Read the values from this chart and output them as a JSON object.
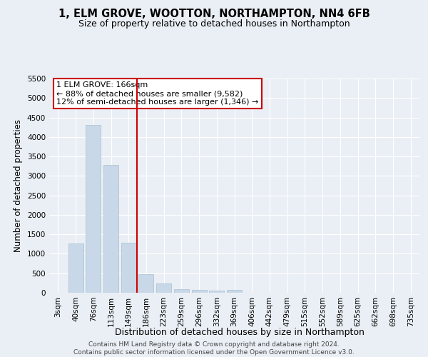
{
  "title": "1, ELM GROVE, WOOTTON, NORTHAMPTON, NN4 6FB",
  "subtitle": "Size of property relative to detached houses in Northampton",
  "xlabel": "Distribution of detached houses by size in Northampton",
  "ylabel": "Number of detached properties",
  "categories": [
    "3sqm",
    "40sqm",
    "76sqm",
    "113sqm",
    "149sqm",
    "186sqm",
    "223sqm",
    "259sqm",
    "296sqm",
    "332sqm",
    "369sqm",
    "406sqm",
    "442sqm",
    "479sqm",
    "515sqm",
    "552sqm",
    "589sqm",
    "625sqm",
    "662sqm",
    "698sqm",
    "735sqm"
  ],
  "values": [
    0,
    1270,
    4300,
    3280,
    1290,
    480,
    230,
    100,
    65,
    50,
    65,
    0,
    0,
    0,
    0,
    0,
    0,
    0,
    0,
    0,
    0
  ],
  "bar_color": "#c8d8e8",
  "bar_edgecolor": "#a8c0d0",
  "vline_color": "#cc0000",
  "annotation_text": "1 ELM GROVE: 166sqm\n← 88% of detached houses are smaller (9,582)\n12% of semi-detached houses are larger (1,346) →",
  "annotation_box_color": "#ffffff",
  "annotation_box_edgecolor": "#cc0000",
  "ylim": [
    0,
    5500
  ],
  "yticks": [
    0,
    500,
    1000,
    1500,
    2000,
    2500,
    3000,
    3500,
    4000,
    4500,
    5000,
    5500
  ],
  "footer": "Contains HM Land Registry data © Crown copyright and database right 2024.\nContains public sector information licensed under the Open Government Licence v3.0.",
  "bg_color": "#eaeff5",
  "plot_bg_color": "#eaeff5",
  "grid_color": "#ffffff",
  "title_fontsize": 10.5,
  "subtitle_fontsize": 9,
  "xlabel_fontsize": 9,
  "ylabel_fontsize": 8.5,
  "tick_fontsize": 7.5,
  "annotation_fontsize": 8,
  "footer_fontsize": 6.5
}
